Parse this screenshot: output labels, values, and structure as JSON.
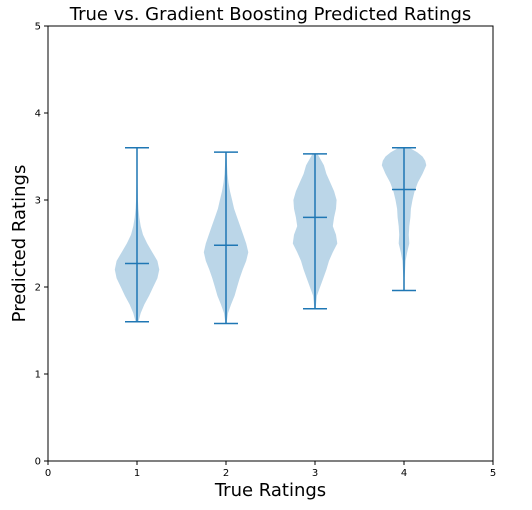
{
  "chart_data": {
    "type": "violin",
    "title": "True vs. Gradient Boosting Predicted Ratings",
    "xlabel": "True Ratings",
    "ylabel": "Predicted Ratings",
    "xlim": [
      0,
      5
    ],
    "ylim": [
      0,
      5
    ],
    "xticks": [
      "0",
      "1",
      "2",
      "3",
      "4",
      "5"
    ],
    "yticks": [
      "0",
      "1",
      "2",
      "3",
      "4",
      "5"
    ],
    "grid": false,
    "colors": {
      "body": "#1f77b4",
      "body_opacity": 0.3,
      "lines": "#1f77b4"
    },
    "violins": [
      {
        "x": 1,
        "min": 1.6,
        "median": 2.27,
        "max": 3.6,
        "profile": [
          [
            1.6,
            0.03
          ],
          [
            1.7,
            0.08
          ],
          [
            1.8,
            0.16
          ],
          [
            1.9,
            0.26
          ],
          [
            2.0,
            0.35
          ],
          [
            2.1,
            0.44
          ],
          [
            2.2,
            0.48
          ],
          [
            2.3,
            0.44
          ],
          [
            2.4,
            0.33
          ],
          [
            2.5,
            0.22
          ],
          [
            2.6,
            0.13
          ],
          [
            2.7,
            0.08
          ],
          [
            2.8,
            0.05
          ],
          [
            2.9,
            0.03
          ],
          [
            3.0,
            0.02
          ],
          [
            3.2,
            0.01
          ],
          [
            3.4,
            0.005
          ],
          [
            3.6,
            0.002
          ]
        ]
      },
      {
        "x": 2,
        "min": 1.58,
        "median": 2.48,
        "max": 3.55,
        "profile": [
          [
            1.58,
            0.01
          ],
          [
            1.7,
            0.04
          ],
          [
            1.8,
            0.1
          ],
          [
            1.9,
            0.17
          ],
          [
            2.0,
            0.22
          ],
          [
            2.1,
            0.27
          ],
          [
            2.2,
            0.33
          ],
          [
            2.3,
            0.4
          ],
          [
            2.4,
            0.44
          ],
          [
            2.5,
            0.4
          ],
          [
            2.6,
            0.34
          ],
          [
            2.7,
            0.28
          ],
          [
            2.8,
            0.22
          ],
          [
            2.9,
            0.16
          ],
          [
            3.0,
            0.12
          ],
          [
            3.1,
            0.08
          ],
          [
            3.2,
            0.05
          ],
          [
            3.3,
            0.03
          ],
          [
            3.4,
            0.02
          ],
          [
            3.55,
            0.005
          ]
        ]
      },
      {
        "x": 3,
        "min": 1.75,
        "median": 2.8,
        "max": 3.53,
        "profile": [
          [
            1.75,
            0.01
          ],
          [
            1.9,
            0.03
          ],
          [
            2.0,
            0.08
          ],
          [
            2.1,
            0.13
          ],
          [
            2.2,
            0.18
          ],
          [
            2.3,
            0.22
          ],
          [
            2.4,
            0.28
          ],
          [
            2.5,
            0.35
          ],
          [
            2.6,
            0.33
          ],
          [
            2.7,
            0.28
          ],
          [
            2.8,
            0.3
          ],
          [
            2.9,
            0.33
          ],
          [
            3.0,
            0.34
          ],
          [
            3.1,
            0.3
          ],
          [
            3.2,
            0.24
          ],
          [
            3.3,
            0.18
          ],
          [
            3.4,
            0.14
          ],
          [
            3.53,
            0.04
          ]
        ]
      },
      {
        "x": 4,
        "min": 1.96,
        "median": 3.12,
        "max": 3.6,
        "profile": [
          [
            1.96,
            0.005
          ],
          [
            2.1,
            0.01
          ],
          [
            2.2,
            0.02
          ],
          [
            2.3,
            0.03
          ],
          [
            2.4,
            0.06
          ],
          [
            2.5,
            0.1
          ],
          [
            2.6,
            0.09
          ],
          [
            2.7,
            0.1
          ],
          [
            2.8,
            0.12
          ],
          [
            2.9,
            0.13
          ],
          [
            3.0,
            0.16
          ],
          [
            3.1,
            0.2
          ],
          [
            3.2,
            0.26
          ],
          [
            3.3,
            0.35
          ],
          [
            3.4,
            0.42
          ],
          [
            3.45,
            0.4
          ],
          [
            3.5,
            0.35
          ],
          [
            3.55,
            0.25
          ],
          [
            3.6,
            0.1
          ]
        ]
      }
    ]
  }
}
